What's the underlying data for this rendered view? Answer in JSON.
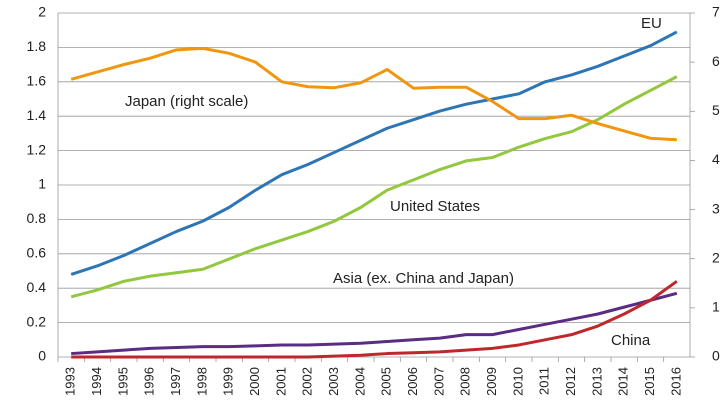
{
  "chart_data": {
    "type": "line",
    "x": [
      "1993",
      "1994",
      "1995",
      "1996",
      "1997",
      "1998",
      "1999",
      "2000",
      "2001",
      "2002",
      "2003",
      "2004",
      "2005",
      "2006",
      "2007",
      "2008",
      "2009",
      "2010",
      "2011",
      "2012",
      "2013",
      "2014",
      "2015",
      "2016"
    ],
    "series": [
      {
        "name": "EU",
        "color": "#2e75b6",
        "values": [
          0.48,
          0.53,
          0.59,
          0.66,
          0.73,
          0.79,
          0.87,
          0.97,
          1.06,
          1.12,
          1.19,
          1.26,
          1.33,
          1.38,
          1.43,
          1.47,
          1.5,
          1.53,
          1.6,
          1.64,
          1.69,
          1.75,
          1.81,
          1.89
        ]
      },
      {
        "name": "United States",
        "color": "#92c83e",
        "values": [
          0.35,
          0.39,
          0.44,
          0.47,
          0.49,
          0.51,
          0.57,
          0.63,
          0.68,
          0.73,
          0.79,
          0.87,
          0.97,
          1.03,
          1.09,
          1.14,
          1.16,
          1.22,
          1.27,
          1.31,
          1.38,
          1.47,
          1.55,
          1.63
        ]
      },
      {
        "name": "Japan (right scale)",
        "color": "#f0960f",
        "axis": "y2",
        "values": [
          5.65,
          5.8,
          5.95,
          6.08,
          6.25,
          6.28,
          6.18,
          6.0,
          5.6,
          5.5,
          5.48,
          5.58,
          5.85,
          5.47,
          5.49,
          5.49,
          5.2,
          4.85,
          4.85,
          4.92,
          4.75,
          4.6,
          4.45,
          4.42
        ]
      },
      {
        "name": "Asia (ex. China and Japan)",
        "color": "#5b2c83",
        "values": [
          0.02,
          0.03,
          0.04,
          0.05,
          0.055,
          0.06,
          0.06,
          0.065,
          0.07,
          0.07,
          0.075,
          0.08,
          0.09,
          0.1,
          0.11,
          0.13,
          0.13,
          0.16,
          0.19,
          0.22,
          0.25,
          0.29,
          0.33,
          0.37
        ]
      },
      {
        "name": "China",
        "color": "#c0272d",
        "values": [
          0,
          0,
          0,
          0,
          0,
          0,
          0,
          0,
          0,
          0,
          0.005,
          0.01,
          0.02,
          0.025,
          0.03,
          0.04,
          0.05,
          0.07,
          0.1,
          0.13,
          0.18,
          0.25,
          0.33,
          0.44
        ]
      }
    ],
    "ylim": [
      0,
      2
    ],
    "yticks": [
      0,
      0.2,
      0.4,
      0.6,
      0.8,
      1,
      1.2,
      1.4,
      1.6,
      1.8,
      2
    ],
    "y2lim": [
      0,
      7
    ],
    "y2ticks": [
      0,
      1,
      2,
      3,
      4,
      5,
      6,
      7
    ],
    "grid": true
  }
}
